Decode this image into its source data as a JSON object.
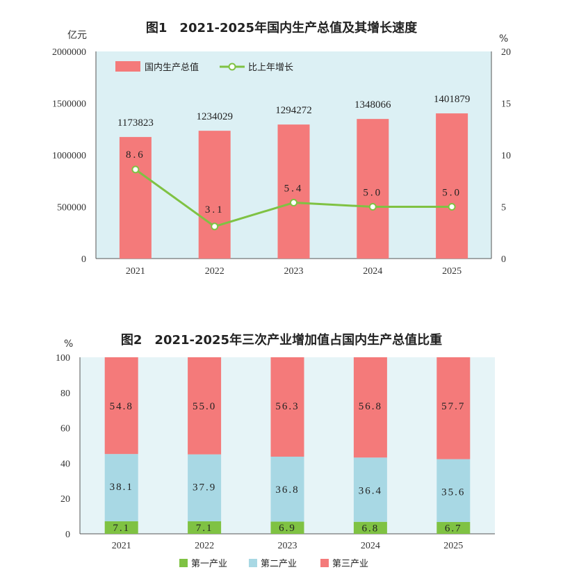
{
  "chart_data": [
    {
      "type": "bar",
      "title": "图1　2021-2025年国内生产总值及其增长速度",
      "categories": [
        "2021",
        "2022",
        "2023",
        "2024",
        "2025"
      ],
      "ylabel_left": "亿元",
      "ylabel_right": "%",
      "ylim_left": [
        0,
        2000000
      ],
      "ylim_right": [
        0,
        20
      ],
      "yticks_left": [
        "0",
        "500000",
        "1000000",
        "1500000",
        "2000000"
      ],
      "yticks_right": [
        "0",
        "5",
        "10",
        "15",
        "20"
      ],
      "legend_position": "top-left",
      "series": [
        {
          "name": "国内生产总值",
          "type": "bar",
          "axis": "left",
          "color": "#f47a7a",
          "values": [
            1173823,
            1234029,
            1294272,
            1348066,
            1401879
          ],
          "labels": [
            "1173823",
            "1234029",
            "1294272",
            "1348066",
            "1401879"
          ]
        },
        {
          "name": "比上年增长",
          "type": "line",
          "axis": "right",
          "color": "#7fc243",
          "values": [
            8.6,
            3.1,
            5.4,
            5.0,
            5.0
          ],
          "labels": [
            "8.6",
            "3.1",
            "5.4",
            "5.0",
            "5.0"
          ]
        }
      ],
      "background": "#dcf0f4"
    },
    {
      "type": "bar",
      "stacked": true,
      "title": "图2　2021-2025年三次产业增加值占国内生产总值比重",
      "categories": [
        "2021",
        "2022",
        "2023",
        "2024",
        "2025"
      ],
      "ylabel": "%",
      "ylim": [
        0,
        100
      ],
      "yticks": [
        "0",
        "20",
        "40",
        "60",
        "80",
        "100"
      ],
      "legend_position": "bottom",
      "series": [
        {
          "name": "第一产业",
          "color": "#7fc243",
          "values": [
            7.1,
            7.1,
            6.9,
            6.8,
            6.7
          ],
          "labels": [
            "7.1",
            "7.1",
            "6.9",
            "6.8",
            "6.7"
          ]
        },
        {
          "name": "第二产业",
          "color": "#a8d8e4",
          "values": [
            38.1,
            37.9,
            36.8,
            36.4,
            35.6
          ],
          "labels": [
            "38.1",
            "37.9",
            "36.8",
            "36.4",
            "35.6"
          ]
        },
        {
          "name": "第三产业",
          "color": "#f47a7a",
          "values": [
            54.8,
            55.0,
            56.3,
            56.8,
            57.7
          ],
          "labels": [
            "54.8",
            "55.0",
            "56.3",
            "56.8",
            "57.7"
          ]
        }
      ],
      "background": "#e6f4f7"
    }
  ]
}
